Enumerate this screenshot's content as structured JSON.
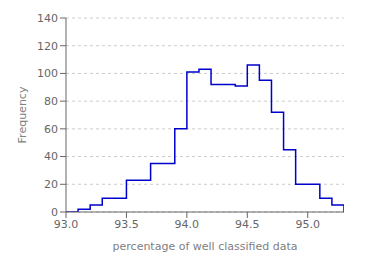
{
  "chart_data": {
    "type": "histogram",
    "bins": [
      93.0,
      93.1,
      93.2,
      93.3,
      93.4,
      93.5,
      93.6,
      93.7,
      93.8,
      93.9,
      94.0,
      94.1,
      94.2,
      94.3,
      94.4,
      94.5,
      94.6,
      94.7,
      94.8,
      94.9,
      95.0,
      95.1,
      95.2,
      95.3
    ],
    "values": [
      0,
      2,
      5,
      10,
      10,
      23,
      23,
      35,
      35,
      60,
      101,
      103,
      92,
      92,
      91,
      106,
      95,
      72,
      45,
      20,
      20,
      10,
      5
    ],
    "color": "#0000CC",
    "xlim": [
      93.0,
      95.3
    ],
    "ylim": [
      0,
      140
    ],
    "xticks": [
      {
        "value": 93.0,
        "label": "93.0"
      },
      93.5,
      {
        "value": 94.0,
        "label": "94.0"
      },
      94.5,
      {
        "value": 95.0,
        "label": "95.0"
      }
    ],
    "yticks": [
      0,
      20,
      40,
      60,
      80,
      100,
      120,
      140
    ],
    "xlabel": "percentage of well classified data",
    "ylabel": "Frequency",
    "grid": true
  }
}
